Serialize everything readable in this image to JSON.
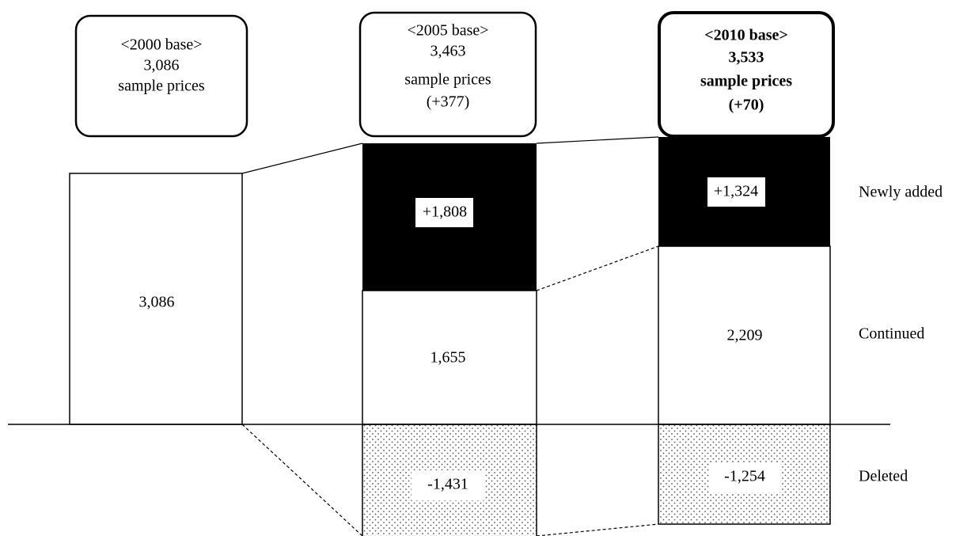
{
  "headers": [
    {
      "lines": [
        "<2000 base>",
        "3,086",
        "sample prices"
      ]
    },
    {
      "lines": [
        "<2005 base>",
        "3,463",
        "sample prices",
        "(+377)"
      ]
    },
    {
      "lines": [
        "<2010 base>",
        "3,533",
        "sample prices",
        "(+70)"
      ]
    }
  ],
  "bars": [
    {
      "total": "3,086"
    },
    {
      "added": "+1,808",
      "continued": "1,655",
      "deleted": "-1,431"
    },
    {
      "added": "+1,324",
      "continued": "2,209",
      "deleted": "-1,254"
    }
  ],
  "row_labels": [
    "Newly added",
    "Continued",
    "Deleted"
  ]
}
